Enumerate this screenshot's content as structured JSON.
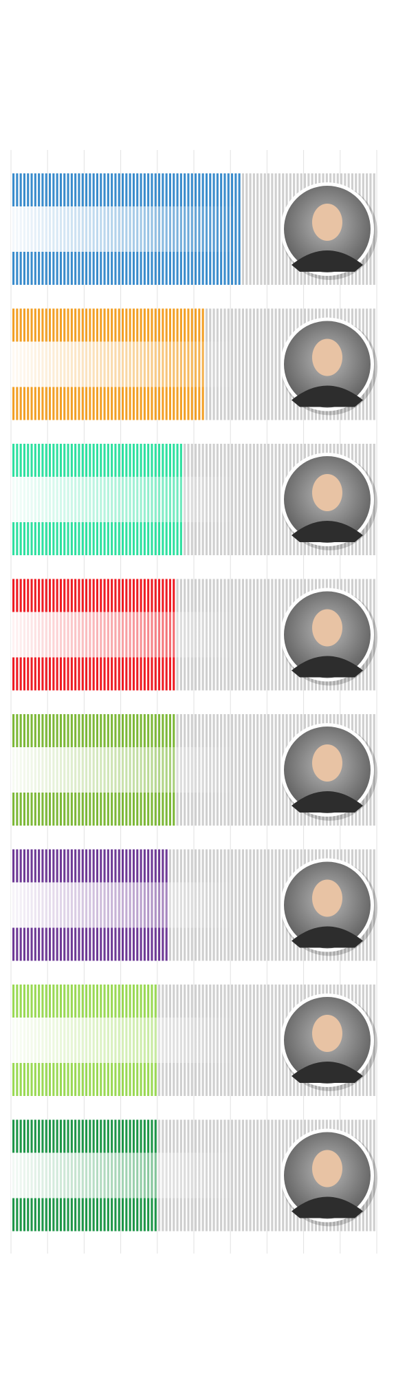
{
  "chart_data": {
    "type": "bar",
    "orientation": "horizontal",
    "title": "",
    "xlabel": "",
    "ylabel": "",
    "xlim": [
      0,
      10
    ],
    "grid": true,
    "legend": "none",
    "max_segments": 100,
    "rows": [
      {
        "value": 6.3,
        "color": "#3a8ccc",
        "portrait": "man-short-hair-portrait"
      },
      {
        "value": 5.3,
        "color": "#f2a026",
        "portrait": "man-glasses-portrait"
      },
      {
        "value": 4.7,
        "color": "#2ee0a0",
        "portrait": "woman-curly-hair-portrait"
      },
      {
        "value": 4.5,
        "color": "#ee1c24",
        "portrait": "man-balding-portrait"
      },
      {
        "value": 4.5,
        "color": "#7db838",
        "portrait": "woman-dark-hair-portrait"
      },
      {
        "value": 4.3,
        "color": "#6e3a96",
        "portrait": "woman-long-hair-portrait"
      },
      {
        "value": 4.0,
        "color": "#9ad954",
        "portrait": "woman-bob-hair-portrait"
      },
      {
        "value": 4.0,
        "color": "#1e9648",
        "portrait": "man-dark-glasses-portrait"
      }
    ]
  }
}
